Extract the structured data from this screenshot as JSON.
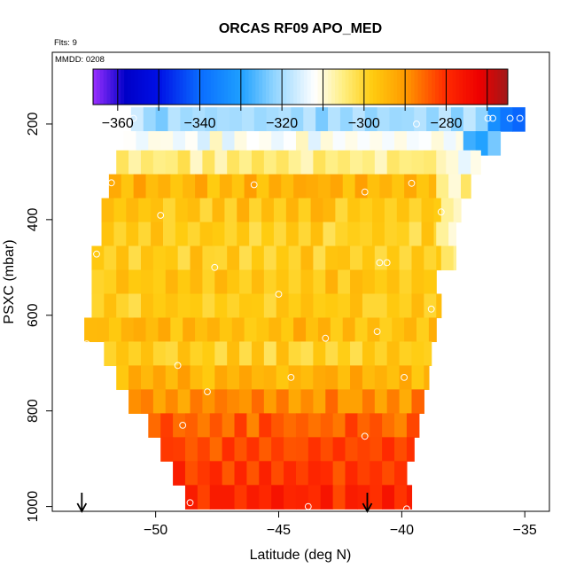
{
  "chart_data": {
    "type": "heatmap",
    "title": "ORCAS RF09 APO_MED",
    "flights_label": "Flts: 9",
    "date_label": "MMDD: 0208",
    "xlabel": "Latitude (deg N)",
    "ylabel": "PSXC (mbar)",
    "xlim": [
      -54.2,
      -34.0
    ],
    "ylim": [
      1010,
      50
    ],
    "x_ticks": [
      -50,
      -45,
      -40,
      -35
    ],
    "y_ticks": [
      200,
      400,
      600,
      800,
      1000
    ],
    "colorbar": {
      "vmin": -366,
      "vmax": -265,
      "ticks": [
        -360,
        -340,
        -320,
        -300,
        -280
      ],
      "color_stops": [
        {
          "v": -366,
          "c": "#9b30ff"
        },
        {
          "v": -358,
          "c": "#0000c8"
        },
        {
          "v": -350,
          "c": "#0010e6"
        },
        {
          "v": -340,
          "c": "#0a6cff"
        },
        {
          "v": -330,
          "c": "#1ea0ff"
        },
        {
          "v": -322,
          "c": "#8fd4ff"
        },
        {
          "v": -312,
          "c": "#ffffff"
        },
        {
          "v": -305,
          "c": "#ffee80"
        },
        {
          "v": -298,
          "c": "#ffcc10"
        },
        {
          "v": -290,
          "c": "#ff9a00"
        },
        {
          "v": -280,
          "c": "#ff2a00"
        },
        {
          "v": -272,
          "c": "#ee0000"
        },
        {
          "v": -265,
          "c": "#a01818"
        }
      ]
    },
    "rows": [
      {
        "p": 190,
        "x0": -51.0,
        "x1": -36.5,
        "v": -318,
        "tail": [
          [
            -36.5,
            -35.0,
            -335
          ]
        ]
      },
      {
        "p": 240,
        "x0": -51.3,
        "x1": -37.5,
        "v": -310,
        "tail": [
          [
            -37.5,
            -36.5,
            -326
          ],
          [
            -36.5,
            -36.0,
            -322
          ]
        ]
      },
      {
        "p": 280,
        "x0": -51.6,
        "x1": -38.2,
        "v": -303,
        "tail": [
          [
            -38.2,
            -36.8,
            -310
          ]
        ]
      },
      {
        "p": 330,
        "x0": -51.9,
        "x1": -38.6,
        "v": -292,
        "tail": [
          [
            -38.6,
            -37.2,
            -305
          ]
        ]
      },
      {
        "p": 380,
        "x0": -52.2,
        "x1": -38.4,
        "v": -295,
        "tail": [
          [
            -38.4,
            -37.6,
            -306
          ]
        ]
      },
      {
        "p": 430,
        "x0": -52.2,
        "x1": -38.6,
        "v": -297,
        "tail": [
          [
            -38.6,
            -37.8,
            -307
          ]
        ]
      },
      {
        "p": 480,
        "x0": -52.6,
        "x1": -38.4,
        "v": -296,
        "tail": [
          [
            -38.4,
            -37.8,
            -302
          ]
        ]
      },
      {
        "p": 530,
        "x0": -52.6,
        "x1": -38.6,
        "v": -295
      },
      {
        "p": 580,
        "x0": -52.6,
        "x1": -38.4,
        "v": -296
      },
      {
        "p": 630,
        "x0": -52.9,
        "x1": -38.6,
        "v": -293
      },
      {
        "p": 680,
        "x0": -52.1,
        "x1": -38.8,
        "v": -297
      },
      {
        "p": 730,
        "x0": -51.6,
        "x1": -38.9,
        "v": -292
      },
      {
        "p": 780,
        "x0": -51.1,
        "x1": -39.1,
        "v": -287
      },
      {
        "p": 830,
        "x0": -50.3,
        "x1": -39.3,
        "v": -283
      },
      {
        "p": 880,
        "x0": -49.8,
        "x1": -39.5,
        "v": -281
      },
      {
        "p": 930,
        "x0": -49.3,
        "x1": -39.8,
        "v": -279
      },
      {
        "p": 980,
        "x0": -48.8,
        "x1": -39.6,
        "v": -277
      }
    ],
    "samples": [
      [
        -50.9,
        188
      ],
      [
        -39.4,
        200
      ],
      [
        -36.5,
        188
      ],
      [
        -36.3,
        188
      ],
      [
        -35.6,
        188
      ],
      [
        -35.2,
        188
      ],
      [
        -51.8,
        323
      ],
      [
        -46.0,
        327
      ],
      [
        -41.5,
        342
      ],
      [
        -39.6,
        324
      ],
      [
        -38.4,
        384
      ],
      [
        -49.8,
        391
      ],
      [
        -52.4,
        472
      ],
      [
        -47.6,
        500
      ],
      [
        -40.9,
        490
      ],
      [
        -40.6,
        490
      ],
      [
        -45.0,
        556
      ],
      [
        -38.8,
        587
      ],
      [
        -52.8,
        660
      ],
      [
        -43.1,
        648
      ],
      [
        -41.0,
        634
      ],
      [
        -49.1,
        705
      ],
      [
        -44.5,
        730
      ],
      [
        -39.9,
        730
      ],
      [
        -47.9,
        760
      ],
      [
        -48.9,
        830
      ],
      [
        -41.5,
        853
      ],
      [
        -48.6,
        992
      ],
      [
        -43.8,
        1000
      ],
      [
        -39.8,
        1005
      ]
    ],
    "flight_markers": [
      -53.0,
      -41.4
    ]
  }
}
